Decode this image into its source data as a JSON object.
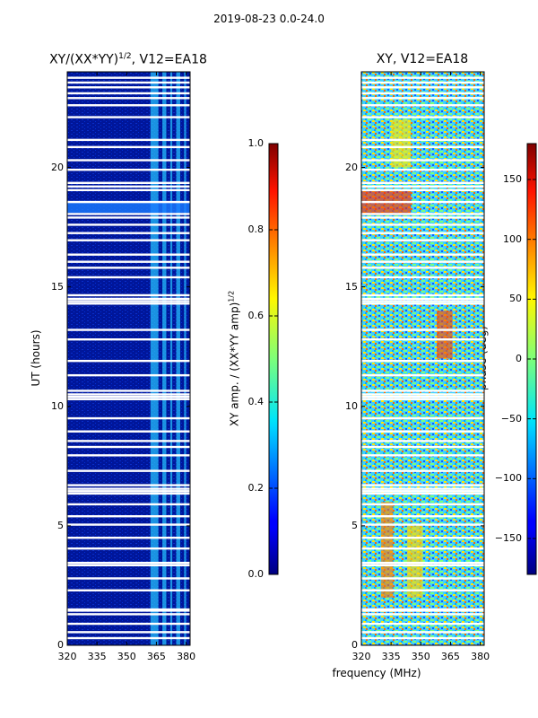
{
  "suptitle": "2019-08-23 0.0-24.0",
  "chart_data": [
    {
      "type": "heatmap",
      "title": "XY/(XX*YY)^1/2, V12=EA18",
      "title_main": "XY/(XX*YY)",
      "title_exp": "1/2",
      "title_tail": ", V12=EA18",
      "xlabel": "",
      "ylabel": "UT (hours)",
      "xlim": [
        320,
        382
      ],
      "ylim": [
        0,
        24
      ],
      "xticks": [
        "320",
        "335",
        "350",
        "365",
        "380"
      ],
      "xtick_values": [
        320,
        335,
        350,
        365,
        380
      ],
      "yticks": [
        "0",
        "5",
        "10",
        "15",
        "20"
      ],
      "ytick_values": [
        0,
        5,
        10,
        15,
        20
      ],
      "colormap": "jet",
      "colorbar": {
        "label": "XY amp. / (XX*YY amp)^1/2",
        "label_main": "XY amp. / (XX*YY amp)",
        "label_exp": "1/2",
        "range": [
          0.0,
          1.0
        ],
        "ticks": [
          "0.0",
          "0.2",
          "0.4",
          "0.6",
          "0.8",
          "1.0"
        ],
        "tick_values": [
          0.0,
          0.2,
          0.4,
          0.6,
          0.8,
          1.0
        ]
      }
    },
    {
      "type": "heatmap",
      "title": "XY, V12=EA18",
      "xlabel": "frequency (MHz)",
      "ylabel": "",
      "xlim": [
        320,
        382
      ],
      "ylim": [
        0,
        24
      ],
      "xticks": [
        "320",
        "335",
        "350",
        "365",
        "380"
      ],
      "xtick_values": [
        320,
        335,
        350,
        365,
        380
      ],
      "yticks": [
        "0",
        "5",
        "10",
        "15",
        "20"
      ],
      "ytick_values": [
        0,
        5,
        10,
        15,
        20
      ],
      "colormap": "jet",
      "colorbar": {
        "label": "phase (deg)",
        "range": [
          -180,
          180
        ],
        "ticks": [
          "−150",
          "−100",
          "−50",
          "0",
          "50",
          "100",
          "150"
        ],
        "tick_values": [
          -150,
          -100,
          -50,
          0,
          50,
          100,
          150
        ]
      }
    }
  ],
  "gaps_ut_hours": [
    0.3,
    0.55,
    0.9,
    1.3,
    1.45,
    1.5,
    2.3,
    2.8,
    3.35,
    3.45,
    4.05,
    4.5,
    5.05,
    5.4,
    5.9,
    6.35,
    6.45,
    6.55,
    6.7,
    7.3,
    7.95,
    8.3,
    8.55,
    8.95,
    9.5,
    10.3,
    10.4,
    10.5,
    10.65,
    11.3,
    11.9,
    12.8,
    13.2,
    14.3,
    14.4,
    14.5,
    14.65,
    15.4,
    15.8,
    16.05,
    16.35,
    16.95,
    17.25,
    17.6,
    17.9,
    18.05,
    18.55,
    19.05,
    19.2,
    19.35,
    19.9,
    20.3,
    20.85,
    21.15,
    22.1,
    22.6,
    22.9,
    23.1,
    23.35,
    23.55,
    23.75
  ]
}
